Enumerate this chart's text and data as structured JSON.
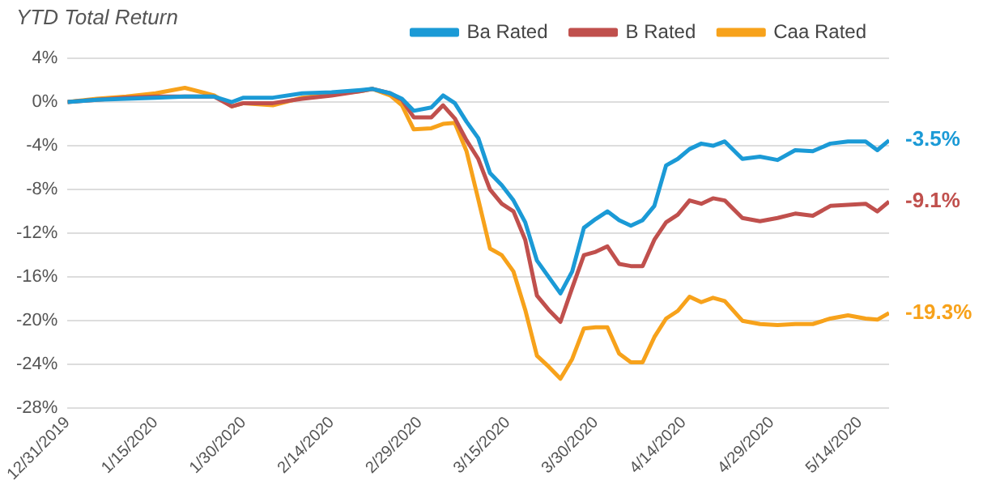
{
  "chart_data": {
    "type": "line",
    "title": "YTD Total Return",
    "x": [
      "2019-12-31",
      "2020-01-05",
      "2020-01-10",
      "2020-01-15",
      "2020-01-20",
      "2020-01-25",
      "2020-01-28",
      "2020-01-30",
      "2020-02-04",
      "2020-02-09",
      "2020-02-14",
      "2020-02-19",
      "2020-02-21",
      "2020-02-24",
      "2020-02-26",
      "2020-02-28",
      "2020-03-02",
      "2020-03-04",
      "2020-03-06",
      "2020-03-08",
      "2020-03-10",
      "2020-03-12",
      "2020-03-14",
      "2020-03-16",
      "2020-03-18",
      "2020-03-20",
      "2020-03-22",
      "2020-03-24",
      "2020-03-26",
      "2020-03-28",
      "2020-03-30",
      "2020-04-01",
      "2020-04-03",
      "2020-04-05",
      "2020-04-07",
      "2020-04-09",
      "2020-04-11",
      "2020-04-13",
      "2020-04-15",
      "2020-04-17",
      "2020-04-19",
      "2020-04-21",
      "2020-04-24",
      "2020-04-27",
      "2020-04-30",
      "2020-05-03",
      "2020-05-06",
      "2020-05-09",
      "2020-05-12",
      "2020-05-15",
      "2020-05-17",
      "2020-05-19"
    ],
    "series": [
      {
        "name": "Ba Rated",
        "color": "#1b9ad6",
        "values": [
          0,
          0.2,
          0.3,
          0.4,
          0.5,
          0.5,
          0.0,
          0.4,
          0.4,
          0.8,
          0.9,
          1.1,
          1.2,
          0.8,
          0.3,
          -0.8,
          -0.5,
          0.6,
          -0.1,
          -1.8,
          -3.3,
          -6.5,
          -7.6,
          -9.0,
          -11.0,
          -14.5,
          -16.0,
          -17.5,
          -15.5,
          -11.5,
          -10.7,
          -10.0,
          -10.8,
          -11.3,
          -10.8,
          -9.5,
          -5.8,
          -5.2,
          -4.3,
          -3.8,
          -4.0,
          -3.6,
          -5.2,
          -5.0,
          -5.3,
          -4.4,
          -4.5,
          -3.8,
          -3.6,
          -3.6,
          -4.4,
          -3.5
        ]
      },
      {
        "name": "B Rated",
        "color": "#c0504d",
        "values": [
          0,
          0.2,
          0.4,
          0.5,
          0.5,
          0.5,
          -0.4,
          -0.1,
          -0.1,
          0.3,
          0.6,
          1.0,
          1.2,
          0.8,
          0.2,
          -1.4,
          -1.4,
          -0.3,
          -1.5,
          -3.5,
          -5.2,
          -8.0,
          -9.3,
          -10.0,
          -12.6,
          -17.7,
          -19.0,
          -20.1,
          -17.0,
          -14.0,
          -13.7,
          -13.2,
          -14.8,
          -15.0,
          -15.0,
          -12.6,
          -11.0,
          -10.3,
          -9.0,
          -9.3,
          -8.8,
          -9.0,
          -10.6,
          -10.9,
          -10.6,
          -10.2,
          -10.4,
          -9.5,
          -9.4,
          -9.3,
          -10.0,
          -9.1
        ]
      },
      {
        "name": "Caa Rated",
        "color": "#f7a21b",
        "values": [
          0,
          0.3,
          0.5,
          0.8,
          1.3,
          0.6,
          -0.4,
          -0.1,
          -0.3,
          0.4,
          0.7,
          1.0,
          1.2,
          0.6,
          -0.3,
          -2.5,
          -2.4,
          -2.0,
          -1.9,
          -4.5,
          -8.9,
          -13.4,
          -14.0,
          -15.5,
          -19.0,
          -23.2,
          -24.2,
          -25.3,
          -23.5,
          -20.7,
          -20.6,
          -20.6,
          -23.0,
          -23.8,
          -23.8,
          -21.5,
          -19.8,
          -19.1,
          -17.8,
          -18.3,
          -17.9,
          -18.2,
          -20.0,
          -20.3,
          -20.4,
          -20.3,
          -20.3,
          -19.8,
          -19.5,
          -19.8,
          -19.9,
          -19.3
        ]
      }
    ],
    "xlim": [
      "2019-12-31",
      "2020-05-19"
    ],
    "xticks": [
      {
        "value": "2019-12-31",
        "label": "12/31/2019"
      },
      {
        "value": "2020-01-15",
        "label": "1/15/2020"
      },
      {
        "value": "2020-01-30",
        "label": "1/30/2020"
      },
      {
        "value": "2020-02-14",
        "label": "2/14/2020"
      },
      {
        "value": "2020-02-29",
        "label": "2/29/2020"
      },
      {
        "value": "2020-03-15",
        "label": "3/15/2020"
      },
      {
        "value": "2020-03-30",
        "label": "3/30/2020"
      },
      {
        "value": "2020-04-14",
        "label": "4/14/2020"
      },
      {
        "value": "2020-04-29",
        "label": "4/29/2020"
      },
      {
        "value": "2020-05-14",
        "label": "5/14/2020"
      }
    ],
    "ylim": [
      -28,
      4
    ],
    "yticks": [
      {
        "value": 4,
        "label": "4%"
      },
      {
        "value": 0,
        "label": "0%"
      },
      {
        "value": -4,
        "label": "-4%"
      },
      {
        "value": -8,
        "label": "-8%"
      },
      {
        "value": -12,
        "label": "-12%"
      },
      {
        "value": -16,
        "label": "-16%"
      },
      {
        "value": -20,
        "label": "-20%"
      },
      {
        "value": -24,
        "label": "-24%"
      },
      {
        "value": -28,
        "label": "-28%"
      }
    ],
    "annotations": [
      {
        "text": "-3.5%",
        "x": "2020-05-19",
        "y": -3.5
      },
      {
        "text": "-9.1%",
        "x": "2020-05-19",
        "y": -9.1
      },
      {
        "text": "-19.3%",
        "x": "2020-05-19",
        "y": -19.3
      }
    ],
    "grid": "y",
    "legend": "top right",
    "marker": "none",
    "line_style": "solid"
  }
}
